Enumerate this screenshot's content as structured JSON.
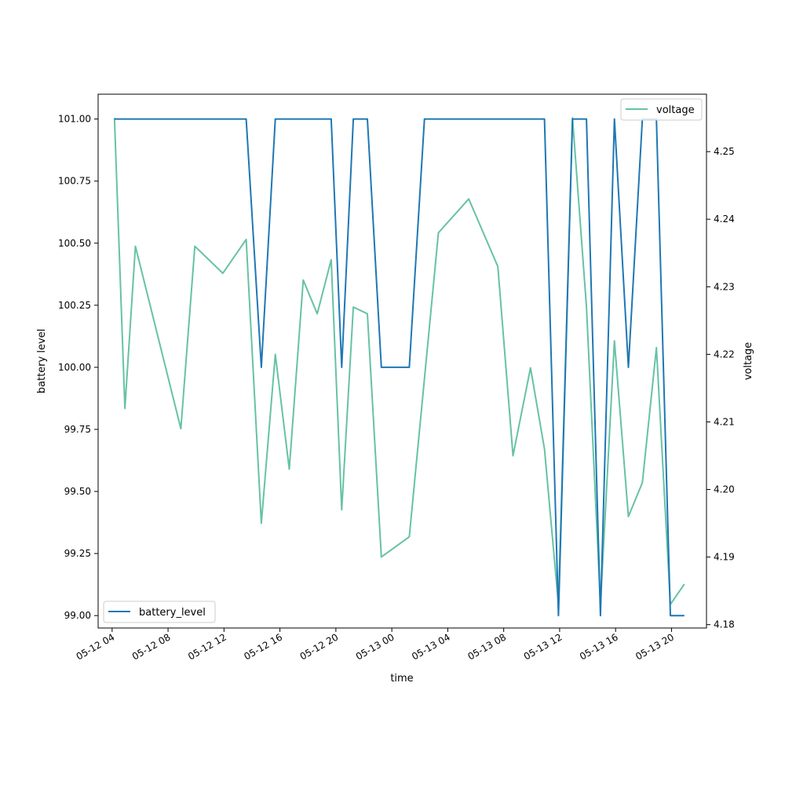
{
  "chart_data": {
    "type": "line",
    "title": "",
    "xlabel": "time",
    "ylabel": "battery level",
    "ylabel_right": "voltage",
    "xlim": [
      "2024-05-12T03:00",
      "2024-05-13T22:30"
    ],
    "ylim": [
      98.95,
      101.1
    ],
    "ylim_right": [
      4.1795,
      4.2585
    ],
    "x_ticks": [
      {
        "t": "2024-05-12T04:00",
        "label": "05-12 04"
      },
      {
        "t": "2024-05-12T08:00",
        "label": "05-12 08"
      },
      {
        "t": "2024-05-12T12:00",
        "label": "05-12 12"
      },
      {
        "t": "2024-05-12T16:00",
        "label": "05-12 16"
      },
      {
        "t": "2024-05-12T20:00",
        "label": "05-12 20"
      },
      {
        "t": "2024-05-13T00:00",
        "label": "05-13 00"
      },
      {
        "t": "2024-05-13T04:00",
        "label": "05-13 04"
      },
      {
        "t": "2024-05-13T08:00",
        "label": "05-13 08"
      },
      {
        "t": "2024-05-13T12:00",
        "label": "05-13 12"
      },
      {
        "t": "2024-05-13T16:00",
        "label": "05-13 16"
      },
      {
        "t": "2024-05-13T20:00",
        "label": "05-13 20"
      }
    ],
    "y_ticks": [
      {
        "v": 99.0,
        "label": "99.00"
      },
      {
        "v": 99.25,
        "label": "99.25"
      },
      {
        "v": 99.5,
        "label": "99.50"
      },
      {
        "v": 99.75,
        "label": "99.75"
      },
      {
        "v": 100.0,
        "label": "100.00"
      },
      {
        "v": 100.25,
        "label": "100.25"
      },
      {
        "v": 100.5,
        "label": "100.50"
      },
      {
        "v": 100.75,
        "label": "100.75"
      },
      {
        "v": 101.0,
        "label": "101.00"
      }
    ],
    "y_ticks_right": [
      {
        "v": 4.18,
        "label": "4.18"
      },
      {
        "v": 4.19,
        "label": "4.19"
      },
      {
        "v": 4.2,
        "label": "4.20"
      },
      {
        "v": 4.21,
        "label": "4.21"
      },
      {
        "v": 4.22,
        "label": "4.22"
      },
      {
        "v": 4.23,
        "label": "4.23"
      },
      {
        "v": 4.24,
        "label": "4.24"
      },
      {
        "v": 4.25,
        "label": "4.25"
      }
    ],
    "grid": false,
    "series": [
      {
        "name": "battery_level",
        "axis": "left",
        "color": "#1f77b4",
        "legend_position": "lower-left",
        "points": [
          [
            "2024-05-12T04:10",
            101
          ],
          [
            "2024-05-12T13:35",
            101
          ],
          [
            "2024-05-12T14:40",
            100
          ],
          [
            "2024-05-12T15:40",
            101
          ],
          [
            "2024-05-12T19:40",
            101
          ],
          [
            "2024-05-12T20:25",
            100
          ],
          [
            "2024-05-12T21:15",
            101
          ],
          [
            "2024-05-12T22:15",
            101
          ],
          [
            "2024-05-12T23:15",
            100
          ],
          [
            "2024-05-13T01:15",
            100
          ],
          [
            "2024-05-13T02:20",
            101
          ],
          [
            "2024-05-13T10:55",
            101
          ],
          [
            "2024-05-13T11:55",
            99
          ],
          [
            "2024-05-13T12:55",
            101
          ],
          [
            "2024-05-13T13:55",
            101
          ],
          [
            "2024-05-13T14:55",
            99
          ],
          [
            "2024-05-13T15:55",
            101
          ],
          [
            "2024-05-13T16:55",
            100
          ],
          [
            "2024-05-13T17:55",
            101
          ],
          [
            "2024-05-13T18:55",
            101
          ],
          [
            "2024-05-13T19:55",
            99
          ],
          [
            "2024-05-13T20:55",
            99
          ]
        ]
      },
      {
        "name": "voltage",
        "axis": "right",
        "color": "#66c2a5",
        "legend_position": "upper-right",
        "points": [
          [
            "2024-05-12T04:10",
            4.255
          ],
          [
            "2024-05-12T04:55",
            4.212
          ],
          [
            "2024-05-12T05:40",
            4.236
          ],
          [
            "2024-05-12T08:55",
            4.209
          ],
          [
            "2024-05-12T09:55",
            4.236
          ],
          [
            "2024-05-12T11:55",
            4.232
          ],
          [
            "2024-05-12T13:35",
            4.237
          ],
          [
            "2024-05-12T14:40",
            4.195
          ],
          [
            "2024-05-12T15:40",
            4.22
          ],
          [
            "2024-05-12T16:40",
            4.203
          ],
          [
            "2024-05-12T17:40",
            4.231
          ],
          [
            "2024-05-12T18:40",
            4.226
          ],
          [
            "2024-05-12T19:40",
            4.234
          ],
          [
            "2024-05-12T20:25",
            4.197
          ],
          [
            "2024-05-12T21:15",
            4.227
          ],
          [
            "2024-05-12T22:15",
            4.226
          ],
          [
            "2024-05-12T23:15",
            4.19
          ],
          [
            "2024-05-13T01:15",
            4.193
          ],
          [
            "2024-05-13T03:20",
            4.238
          ],
          [
            "2024-05-13T05:30",
            4.243
          ],
          [
            "2024-05-13T07:35",
            4.233
          ],
          [
            "2024-05-13T08:40",
            4.205
          ],
          [
            "2024-05-13T09:55",
            4.218
          ],
          [
            "2024-05-13T10:55",
            4.206
          ],
          [
            "2024-05-13T11:55",
            4.183
          ],
          [
            "2024-05-13T12:55",
            4.255
          ],
          [
            "2024-05-13T13:55",
            4.227
          ],
          [
            "2024-05-13T14:55",
            4.183
          ],
          [
            "2024-05-13T15:55",
            4.222
          ],
          [
            "2024-05-13T16:55",
            4.196
          ],
          [
            "2024-05-13T17:55",
            4.201
          ],
          [
            "2024-05-13T18:55",
            4.221
          ],
          [
            "2024-05-13T19:55",
            4.183
          ],
          [
            "2024-05-13T20:55",
            4.186
          ]
        ]
      }
    ]
  }
}
